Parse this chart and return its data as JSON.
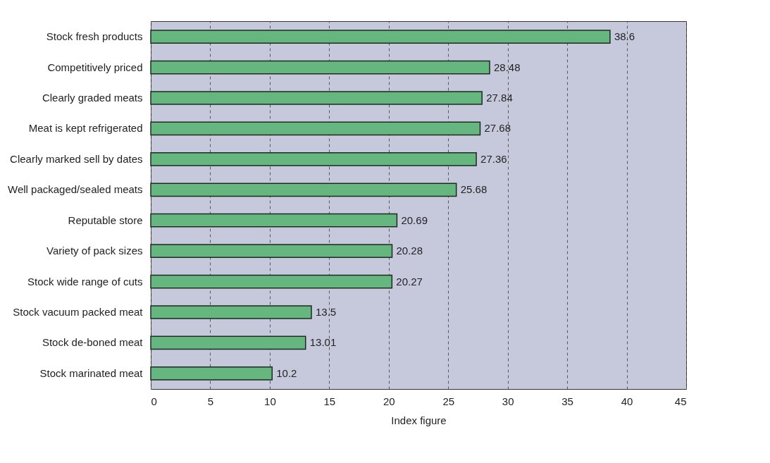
{
  "chart_data": {
    "type": "bar",
    "orientation": "horizontal",
    "xlabel": "Index figure",
    "categories": [
      "Stock fresh products",
      "Competitively priced",
      "Clearly graded meats",
      "Meat is kept refrigerated",
      "Clearly marked sell by dates",
      "Well packaged/sealed meats",
      "Reputable store",
      "Variety of pack sizes",
      "Stock wide range of cuts",
      "Stock vacuum packed meat",
      "Stock de-boned meat",
      "Stock marinated meat"
    ],
    "values": [
      38.6,
      28.48,
      27.84,
      27.68,
      27.36,
      25.68,
      20.69,
      20.28,
      20.27,
      13.5,
      13.01,
      10.2
    ],
    "color": "#66b67f",
    "xlim": [
      0,
      45
    ],
    "xticks": [
      0,
      5,
      10,
      15,
      20,
      25,
      30,
      35,
      40,
      45
    ],
    "grid": "x",
    "data_labels": true
  }
}
